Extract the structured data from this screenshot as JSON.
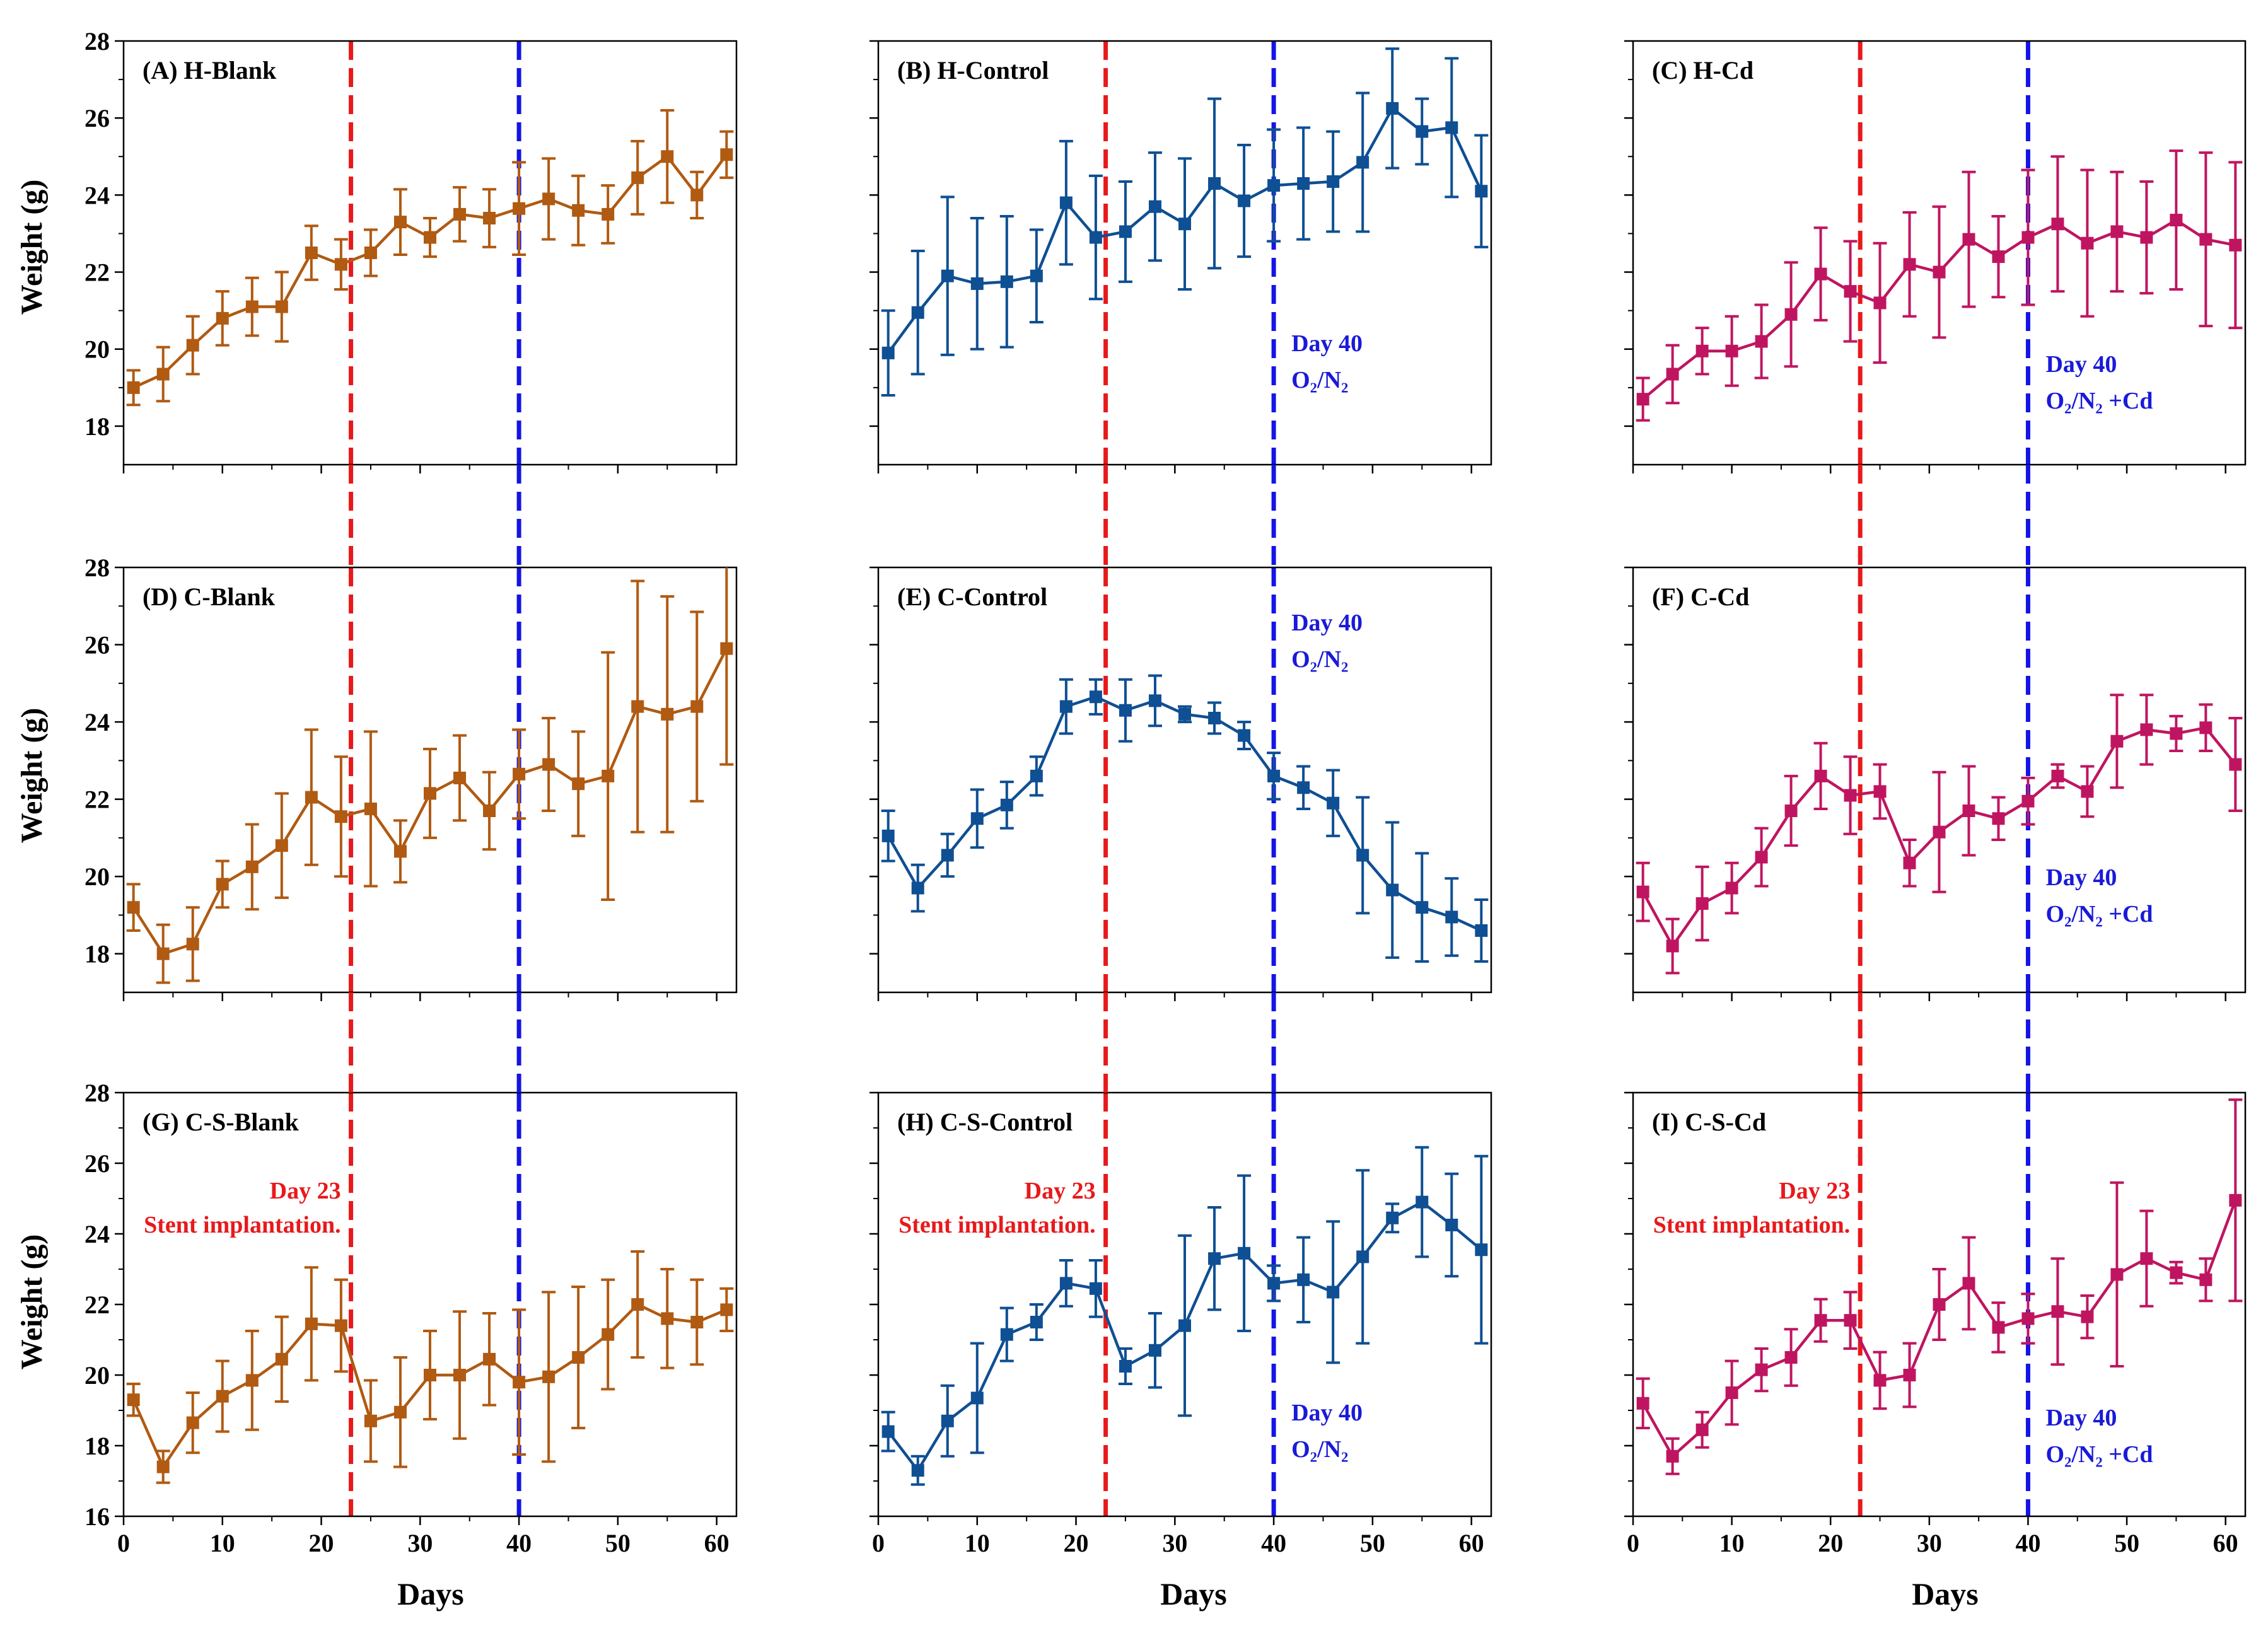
{
  "figure": {
    "xlabel": "Days",
    "ylabel": "Weight (g)",
    "colors": {
      "H": "#b05a12",
      "C": "#0f4f93",
      "S": "#bf1560",
      "red_line": "#e8191b",
      "blue_line": "#1414e6",
      "red_text": "#e8191b",
      "blue_text": "#1a1ad8"
    },
    "x_ticks": [
      0,
      10,
      20,
      30,
      40,
      50,
      60
    ],
    "vlines": [
      {
        "x": 23,
        "color": "red"
      },
      {
        "x": 40,
        "color": "blue"
      }
    ],
    "annotations": {
      "day23_line1": "Day 23",
      "day23_line2": "Stent implantation.",
      "day40_line1": "Day 40",
      "day40_ctrl": "O₂/N₂",
      "day40_cd": "O₂/N₂ +Cd"
    }
  },
  "chart_data": [
    {
      "type": "line",
      "label": "(A) H-Blank",
      "color_key": "H",
      "ylim": [
        17,
        28
      ],
      "y_ticks": [
        18,
        20,
        22,
        24,
        26,
        28
      ],
      "x": [
        1,
        4,
        7,
        10,
        13,
        16,
        19,
        22,
        25,
        28,
        31,
        34,
        37,
        40,
        43,
        46,
        49,
        52,
        55,
        58,
        61
      ],
      "y": [
        19.0,
        19.35,
        20.1,
        20.8,
        21.1,
        21.1,
        22.5,
        22.2,
        22.5,
        23.3,
        22.9,
        23.5,
        23.4,
        23.65,
        23.9,
        23.6,
        23.5,
        24.45,
        25.0,
        24.0,
        25.05
      ],
      "err": [
        0.45,
        0.7,
        0.75,
        0.7,
        0.75,
        0.9,
        0.7,
        0.65,
        0.6,
        0.85,
        0.5,
        0.7,
        0.75,
        1.2,
        1.05,
        0.9,
        0.75,
        0.95,
        1.2,
        0.6,
        0.6
      ]
    },
    {
      "type": "line",
      "label": "(B) H-Control",
      "color_key": "C",
      "ylim": [
        17,
        28
      ],
      "y_ticks": [
        18,
        20,
        22,
        24,
        26,
        28
      ],
      "x": [
        1,
        4,
        7,
        10,
        13,
        16,
        19,
        22,
        25,
        28,
        31,
        34,
        37,
        40,
        43,
        46,
        49,
        52,
        55,
        58,
        61
      ],
      "y": [
        19.9,
        20.95,
        21.9,
        21.7,
        21.75,
        21.9,
        23.8,
        22.9,
        23.05,
        23.7,
        23.25,
        24.3,
        23.85,
        24.25,
        24.3,
        24.35,
        24.85,
        26.25,
        25.65,
        25.75,
        24.1
      ],
      "err": [
        1.1,
        1.6,
        2.05,
        1.7,
        1.7,
        1.2,
        1.6,
        1.6,
        1.3,
        1.4,
        1.7,
        2.2,
        1.45,
        1.45,
        1.45,
        1.3,
        1.8,
        1.55,
        0.85,
        1.8,
        1.45
      ]
    },
    {
      "type": "line",
      "label": "(C) H-Cd",
      "color_key": "S",
      "ylim": [
        17,
        28
      ],
      "y_ticks": [
        18,
        20,
        22,
        24,
        26,
        28
      ],
      "x": [
        1,
        4,
        7,
        10,
        13,
        16,
        19,
        22,
        25,
        28,
        31,
        34,
        37,
        40,
        43,
        46,
        49,
        52,
        55,
        58,
        61
      ],
      "y": [
        18.7,
        19.35,
        19.95,
        19.95,
        20.2,
        20.9,
        21.95,
        21.5,
        21.2,
        22.2,
        22.0,
        22.85,
        22.4,
        22.9,
        23.25,
        22.75,
        23.05,
        22.9,
        23.35,
        22.85,
        22.7
      ],
      "err": [
        0.55,
        0.75,
        0.6,
        0.9,
        0.95,
        1.35,
        1.2,
        1.3,
        1.55,
        1.35,
        1.7,
        1.75,
        1.05,
        1.75,
        1.75,
        1.9,
        1.55,
        1.45,
        1.8,
        2.25,
        2.15
      ]
    },
    {
      "type": "line",
      "label": "(D) C-Blank",
      "color_key": "H",
      "ylim": [
        17,
        28
      ],
      "y_ticks": [
        18,
        20,
        22,
        24,
        26,
        28
      ],
      "x": [
        1,
        4,
        7,
        10,
        13,
        16,
        19,
        22,
        25,
        28,
        31,
        34,
        37,
        40,
        43,
        46,
        49,
        52,
        55,
        58,
        61
      ],
      "y": [
        19.2,
        18.0,
        18.25,
        19.8,
        20.25,
        20.8,
        22.05,
        21.55,
        21.75,
        20.65,
        22.15,
        22.55,
        21.7,
        22.65,
        22.9,
        22.4,
        22.6,
        24.4,
        24.2,
        24.4,
        25.9
      ],
      "err": [
        0.6,
        0.75,
        0.95,
        0.6,
        1.1,
        1.35,
        1.75,
        1.55,
        2.0,
        0.8,
        1.15,
        1.1,
        1.0,
        1.15,
        1.2,
        1.35,
        3.2,
        3.25,
        3.05,
        2.45,
        3.0
      ]
    },
    {
      "type": "line",
      "label": "(E) C-Control",
      "color_key": "C",
      "ylim": [
        17,
        28
      ],
      "y_ticks": [
        18,
        20,
        22,
        24,
        26,
        28
      ],
      "x": [
        1,
        4,
        7,
        10,
        13,
        16,
        19,
        22,
        25,
        28,
        31,
        34,
        37,
        40,
        43,
        46,
        49,
        52,
        55,
        58,
        61
      ],
      "y": [
        21.05,
        19.7,
        20.55,
        21.5,
        21.85,
        22.6,
        24.4,
        24.65,
        24.3,
        24.55,
        24.2,
        24.1,
        23.65,
        22.6,
        22.3,
        21.9,
        20.55,
        19.65,
        19.2,
        18.95,
        18.6
      ],
      "err": [
        0.65,
        0.6,
        0.55,
        0.75,
        0.6,
        0.5,
        0.7,
        0.45,
        0.8,
        0.65,
        0.2,
        0.4,
        0.35,
        0.6,
        0.55,
        0.85,
        1.5,
        1.75,
        1.4,
        1.0,
        0.8
      ]
    },
    {
      "type": "line",
      "label": "(F) C-Cd",
      "color_key": "S",
      "ylim": [
        17,
        28
      ],
      "y_ticks": [
        18,
        20,
        22,
        24,
        26,
        28
      ],
      "x": [
        1,
        4,
        7,
        10,
        13,
        16,
        19,
        22,
        25,
        28,
        31,
        34,
        37,
        40,
        43,
        46,
        49,
        52,
        55,
        58,
        61
      ],
      "y": [
        19.6,
        18.2,
        19.3,
        19.7,
        20.5,
        21.7,
        22.6,
        22.1,
        22.2,
        20.35,
        21.15,
        21.7,
        21.5,
        21.95,
        22.6,
        22.2,
        23.5,
        23.8,
        23.7,
        23.85,
        22.9
      ],
      "err": [
        0.75,
        0.7,
        0.95,
        0.65,
        0.75,
        0.9,
        0.85,
        1.0,
        0.7,
        0.6,
        1.55,
        1.15,
        0.55,
        0.6,
        0.3,
        0.65,
        1.2,
        0.9,
        0.45,
        0.6,
        1.2
      ]
    },
    {
      "type": "line",
      "label": "(G) C-S-Blank",
      "color_key": "H",
      "ylim": [
        16,
        28
      ],
      "y_ticks": [
        16,
        18,
        20,
        22,
        24,
        26,
        28
      ],
      "x": [
        1,
        4,
        7,
        10,
        13,
        16,
        19,
        22,
        25,
        28,
        31,
        34,
        37,
        40,
        43,
        46,
        49,
        52,
        55,
        58,
        61
      ],
      "y": [
        19.3,
        17.4,
        18.65,
        19.4,
        19.85,
        20.45,
        21.45,
        21.4,
        18.7,
        18.95,
        20.0,
        20.0,
        20.45,
        19.8,
        19.95,
        20.5,
        21.15,
        22.0,
        21.6,
        21.5,
        21.85
      ],
      "err": [
        0.45,
        0.45,
        0.85,
        1.0,
        1.4,
        1.2,
        1.6,
        1.3,
        1.15,
        1.55,
        1.25,
        1.8,
        1.3,
        2.05,
        2.4,
        2.0,
        1.55,
        1.5,
        1.4,
        1.2,
        0.6
      ]
    },
    {
      "type": "line",
      "label": "(H) C-S-Control",
      "color_key": "C",
      "ylim": [
        16,
        28
      ],
      "y_ticks": [
        16,
        18,
        20,
        22,
        24,
        26,
        28
      ],
      "x": [
        1,
        4,
        7,
        10,
        13,
        16,
        19,
        22,
        25,
        28,
        31,
        34,
        37,
        40,
        43,
        46,
        49,
        52,
        55,
        58,
        61
      ],
      "y": [
        18.4,
        17.3,
        18.7,
        19.35,
        21.15,
        21.5,
        22.6,
        22.45,
        20.25,
        20.7,
        21.4,
        23.3,
        23.45,
        22.6,
        22.7,
        22.35,
        23.35,
        24.45,
        24.9,
        24.25,
        23.55
      ],
      "err": [
        0.55,
        0.4,
        1.0,
        1.55,
        0.75,
        0.5,
        0.65,
        0.8,
        0.5,
        1.05,
        2.55,
        1.45,
        2.2,
        0.5,
        1.2,
        2.0,
        2.45,
        0.4,
        1.55,
        1.45,
        2.65
      ]
    },
    {
      "type": "line",
      "label": "(I) C-S-Cd",
      "color_key": "S",
      "ylim": [
        16,
        28
      ],
      "y_ticks": [
        16,
        18,
        20,
        22,
        24,
        26,
        28
      ],
      "x": [
        1,
        4,
        7,
        10,
        13,
        16,
        19,
        22,
        25,
        28,
        31,
        34,
        37,
        40,
        43,
        46,
        49,
        52,
        55,
        58,
        61
      ],
      "y": [
        19.2,
        17.7,
        18.45,
        19.5,
        20.15,
        20.5,
        21.55,
        21.55,
        19.85,
        20.0,
        22.0,
        22.6,
        21.35,
        21.6,
        21.8,
        21.65,
        22.85,
        23.3,
        22.9,
        22.7,
        24.95
      ],
      "err": [
        0.7,
        0.5,
        0.5,
        0.9,
        0.6,
        0.8,
        0.6,
        0.8,
        0.8,
        0.9,
        1.0,
        1.3,
        0.7,
        0.7,
        1.5,
        0.6,
        2.6,
        1.35,
        0.3,
        0.6,
        2.85
      ]
    }
  ]
}
